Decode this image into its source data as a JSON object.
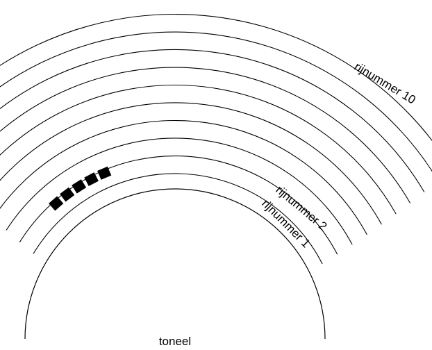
{
  "labels": {
    "row_1": "rijnummer 1",
    "row_2": "rijnummer 2",
    "row_10": "rijnummer 10",
    "stage": "toneel"
  },
  "rows": {
    "count": 10
  },
  "seats": {
    "count": 5
  }
}
